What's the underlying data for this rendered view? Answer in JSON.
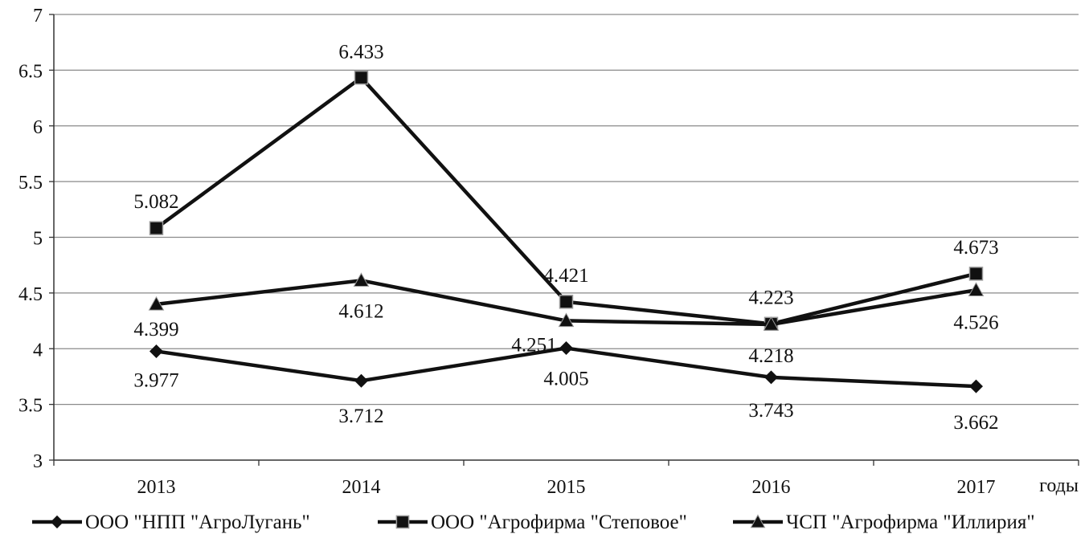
{
  "chart_data": {
    "type": "line",
    "categories": [
      "2013",
      "2014",
      "2015",
      "2016",
      "2017"
    ],
    "xlabel": "годы",
    "ylabel": "",
    "ylim": [
      3,
      7
    ],
    "ytick_step": 0.5,
    "ytick_labels": [
      "3",
      "3.5",
      "4",
      "4.5",
      "5",
      "5.5",
      "6",
      "6.5",
      "7"
    ],
    "grid": true,
    "legend_position": "bottom",
    "series": [
      {
        "name": "ООО \"НПП \"АгроЛугань\"",
        "marker": "diamond",
        "values": [
          3.977,
          3.712,
          4.005,
          3.743,
          3.662
        ],
        "labels": [
          "3.977",
          "3.712",
          "4.005",
          "3.743",
          "3.662"
        ]
      },
      {
        "name": "ООО \"Агрофирма \"Степовое\"",
        "marker": "square",
        "values": [
          5.082,
          6.433,
          4.421,
          4.223,
          4.673
        ],
        "labels": [
          "5.082",
          "6.433",
          "4.421",
          "4.223",
          "4.673"
        ]
      },
      {
        "name": "ЧСП \"Агрофирма \"Иллирия\"",
        "marker": "triangle",
        "values": [
          4.399,
          4.612,
          4.251,
          4.218,
          4.526
        ],
        "labels": [
          "4.399",
          "4.612",
          "4.251",
          "4.218",
          "4.526"
        ]
      }
    ],
    "colors": {
      "line": "#111111",
      "grid": "#8a8a8a",
      "axis": "#333333"
    }
  }
}
